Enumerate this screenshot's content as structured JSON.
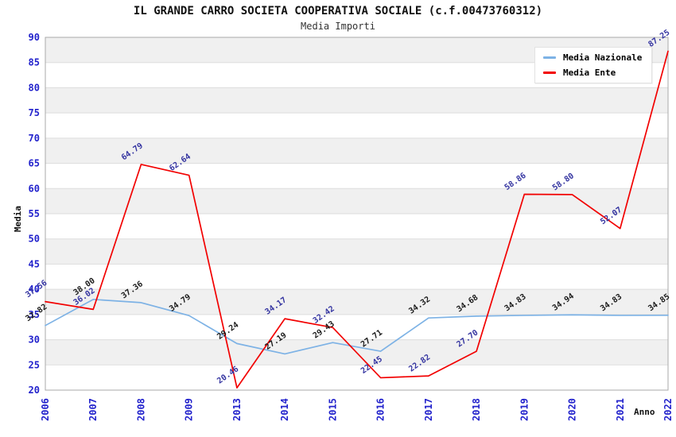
{
  "title": "IL GRANDE CARRO SOCIETA COOPERATIVA SOCIALE (c.f.00473760312)",
  "subtitle": "Media Importi",
  "chart_data": {
    "type": "line",
    "title": "IL GRANDE CARRO SOCIETA COOPERATIVA SOCIALE (c.f.00473760312)",
    "subtitle": "Media Importi",
    "xlabel": "Anno",
    "ylabel": "Media",
    "x": [
      "2006",
      "2007",
      "2008",
      "2009",
      "2013",
      "2014",
      "2015",
      "2016",
      "2017",
      "2018",
      "2019",
      "2020",
      "2021",
      "2022"
    ],
    "series": [
      {
        "name": "Media Nazionale",
        "color": "#7DB2E5",
        "label_color": "#1A1A1A",
        "values": [
          32.82,
          38.0,
          37.36,
          34.79,
          29.24,
          27.19,
          29.43,
          27.71,
          34.32,
          34.68,
          34.83,
          34.94,
          34.83,
          34.85
        ]
      },
      {
        "name": "Media Ente",
        "color": "#F20000",
        "label_color": "#3333A0",
        "values": [
          37.56,
          36.02,
          64.79,
          62.64,
          20.46,
          34.17,
          32.42,
          22.45,
          22.82,
          27.7,
          58.86,
          58.8,
          52.07,
          87.25
        ]
      }
    ],
    "ylim": [
      20,
      90
    ],
    "ytick_step": 5,
    "yticks": [
      20,
      25,
      30,
      35,
      40,
      45,
      50,
      55,
      60,
      65,
      70,
      75,
      80,
      85,
      90
    ],
    "grid": "horizontal-bands",
    "band_colors": [
      "#FFFFFF",
      "#F0F0F0"
    ],
    "tick_label_color": "#2222CC",
    "gridline_color": "#DDDDDD",
    "plot_border_color": "#AAAAAA",
    "legend_position": "top-right"
  }
}
